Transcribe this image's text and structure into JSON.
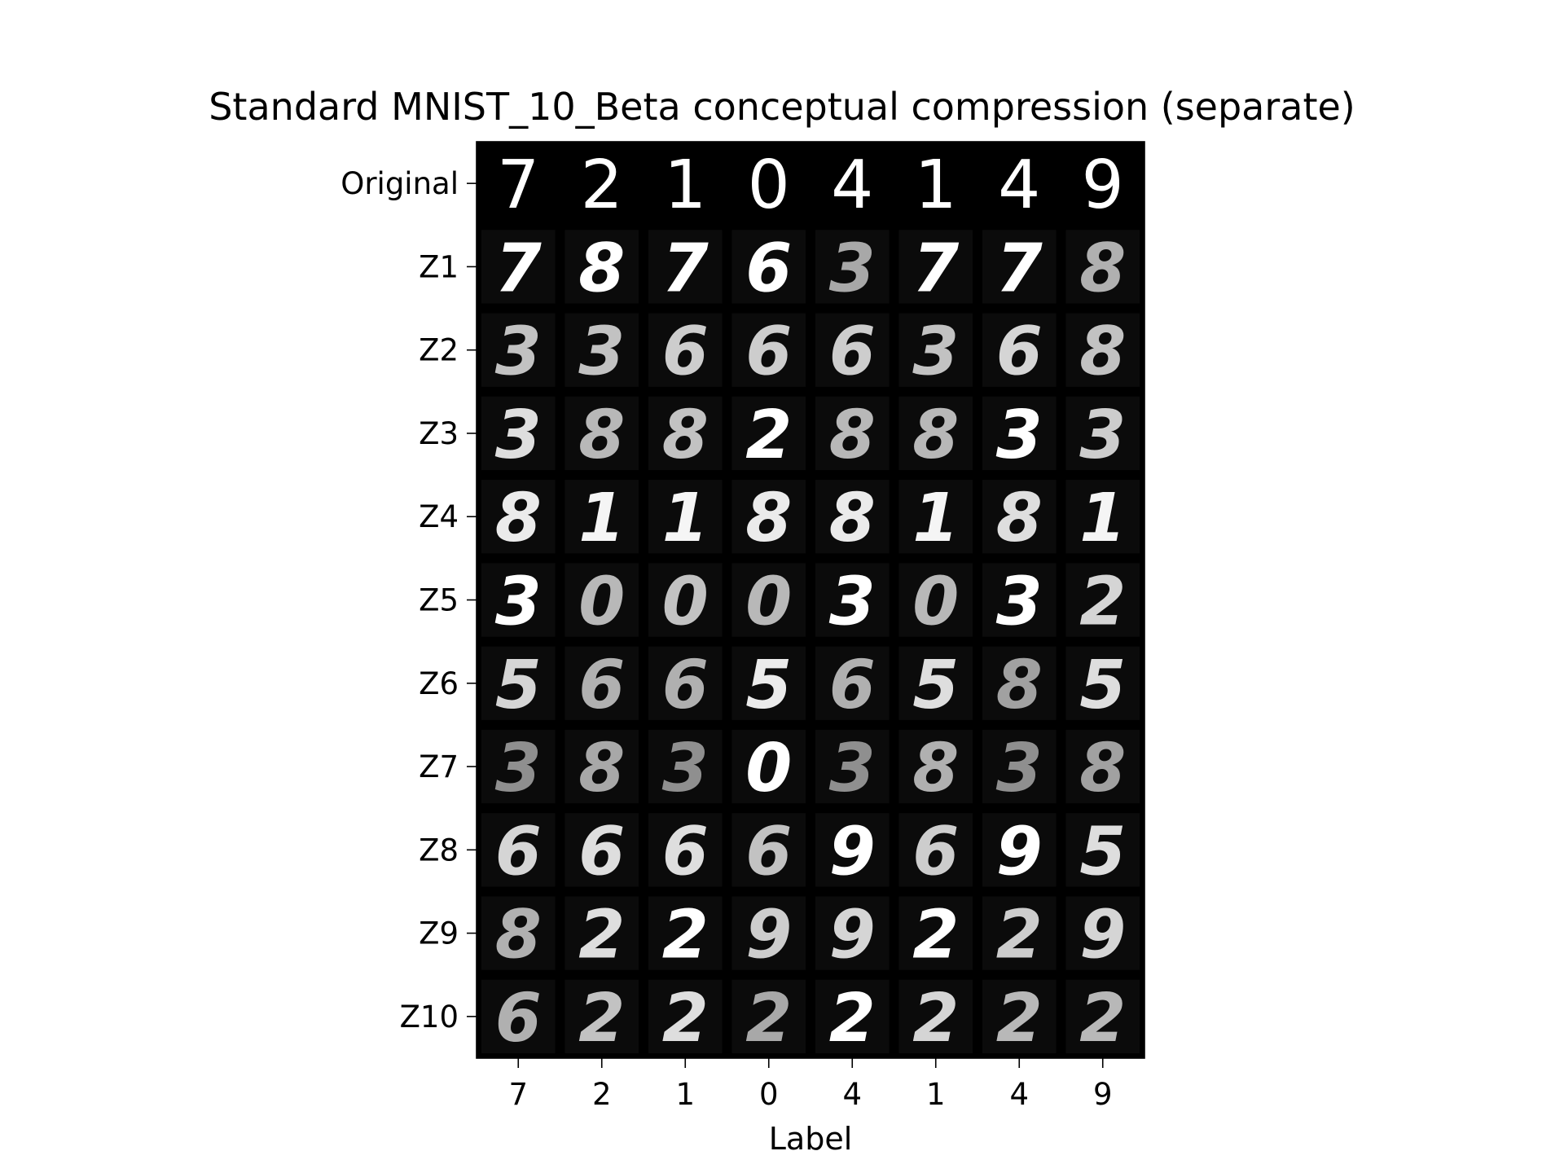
{
  "chart_data": {
    "type": "heatmap",
    "title": "Standard MNIST_10_Beta conceptual compression (separate)",
    "xlabel": "Label",
    "ylabel": "",
    "x_tick_labels": [
      "7",
      "2",
      "1",
      "0",
      "4",
      "1",
      "4",
      "9"
    ],
    "y_tick_labels": [
      "Original",
      "Z1",
      "Z2",
      "Z3",
      "Z4",
      "Z5",
      "Z6",
      "Z7",
      "Z8",
      "Z9",
      "Z10"
    ],
    "grid": false,
    "colormap": "gray",
    "cells": [
      [
        "7",
        "2",
        "1",
        "0",
        "4",
        "1",
        "4",
        "9"
      ],
      [
        "7",
        "8",
        "7",
        "6",
        "3",
        "7",
        "7",
        "8"
      ],
      [
        "3",
        "3",
        "6",
        "6",
        "6",
        "3",
        "6",
        "8"
      ],
      [
        "3",
        "8",
        "8",
        "2",
        "8",
        "8",
        "3",
        "3"
      ],
      [
        "8",
        "1",
        "1",
        "8",
        "8",
        "1",
        "8",
        "1"
      ],
      [
        "3",
        "0",
        "0",
        "0",
        "3",
        "0",
        "3",
        "2"
      ],
      [
        "5",
        "6",
        "6",
        "5",
        "6",
        "5",
        "8",
        "5"
      ],
      [
        "3",
        "8",
        "3",
        "0",
        "3",
        "8",
        "3",
        "8"
      ],
      [
        "6",
        "6",
        "6",
        "6",
        "9",
        "6",
        "9",
        "5"
      ],
      [
        "8",
        "2",
        "2",
        "9",
        "9",
        "2",
        "2",
        "9"
      ],
      [
        "6",
        "2",
        "2",
        "2",
        "2",
        "2",
        "2",
        "2"
      ]
    ],
    "cell_brightness": [
      [
        1.0,
        1.0,
        1.0,
        1.0,
        1.0,
        1.0,
        1.0,
        1.0
      ],
      [
        1.0,
        1.0,
        1.0,
        1.0,
        0.55,
        1.0,
        1.0,
        0.6
      ],
      [
        0.7,
        0.7,
        0.75,
        0.75,
        0.75,
        0.7,
        0.8,
        0.7
      ],
      [
        0.85,
        0.65,
        0.7,
        1.0,
        0.65,
        0.65,
        1.0,
        0.75
      ],
      [
        0.9,
        0.95,
        0.95,
        0.9,
        0.9,
        0.95,
        0.85,
        0.95
      ],
      [
        1.0,
        0.65,
        0.7,
        0.65,
        1.0,
        0.65,
        1.0,
        0.8
      ],
      [
        0.8,
        0.6,
        0.6,
        0.9,
        0.6,
        0.85,
        0.5,
        0.85
      ],
      [
        0.4,
        0.55,
        0.4,
        1.0,
        0.4,
        0.6,
        0.4,
        0.5
      ],
      [
        0.8,
        0.85,
        0.85,
        0.7,
        1.0,
        0.75,
        1.0,
        0.85
      ],
      [
        0.6,
        0.85,
        1.0,
        0.75,
        0.8,
        1.0,
        0.75,
        0.8
      ],
      [
        0.6,
        0.7,
        0.85,
        0.55,
        1.0,
        0.8,
        0.65,
        0.65
      ]
    ]
  }
}
